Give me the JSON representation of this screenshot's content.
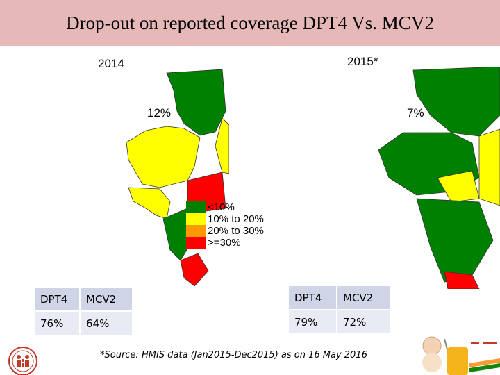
{
  "title": "Drop-out on reported coverage DPT4 Vs. MCV2",
  "map_2014": {
    "year": "2014",
    "dropout": "12%"
  },
  "map_2015": {
    "year": "2015*",
    "dropout": "7%"
  },
  "legend": [
    {
      "label": "<10%",
      "color": "#008000"
    },
    {
      "label": "10% to 20%",
      "color": "#ffff00"
    },
    {
      "label": "20% to 30%",
      "color": "#ff9900"
    },
    {
      "label": ">=30%",
      "color": "#ff0000"
    }
  ],
  "table_2014": {
    "headers": [
      "DPT4",
      "MCV2"
    ],
    "values": [
      "76%",
      "64%"
    ]
  },
  "table_2015": {
    "headers": [
      "DPT4",
      "MCV2"
    ],
    "values": [
      "79%",
      "72%"
    ]
  },
  "source": "*Source: HMIS data (Jan2015-Dec2015) as on  16 May 2016",
  "colors": {
    "title_bg": "#e6b9b8",
    "table_header": "#cfd5e6",
    "table_value": "#e9ebf4"
  }
}
